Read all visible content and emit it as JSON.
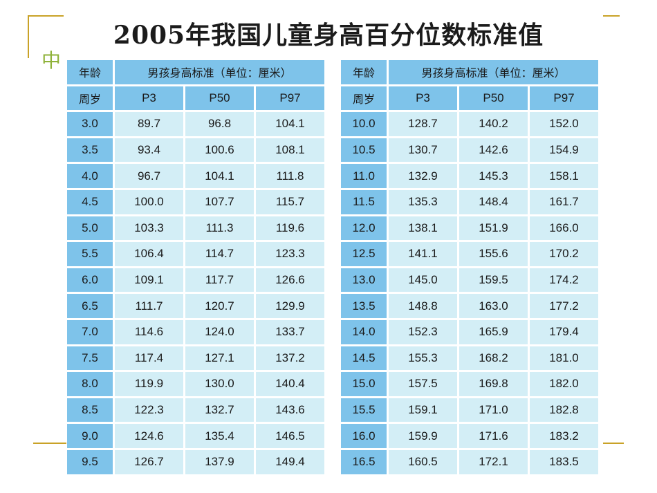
{
  "title": "2005年我国儿童身高百分位数标准值",
  "bullet_char": "中",
  "tables": [
    {
      "age_header": "年龄",
      "measure_header": "男孩身高标准（单位：厘米）",
      "unit_header": "周岁",
      "cols": [
        "P3",
        "P50",
        "P97"
      ],
      "rows": [
        {
          "age": "3.0",
          "p3": "89.7",
          "p50": "96.8",
          "p97": "104.1"
        },
        {
          "age": "3.5",
          "p3": "93.4",
          "p50": "100.6",
          "p97": "108.1"
        },
        {
          "age": "4.0",
          "p3": "96.7",
          "p50": "104.1",
          "p97": "111.8"
        },
        {
          "age": "4.5",
          "p3": "100.0",
          "p50": "107.7",
          "p97": "115.7"
        },
        {
          "age": "5.0",
          "p3": "103.3",
          "p50": "111.3",
          "p97": "119.6"
        },
        {
          "age": "5.5",
          "p3": "106.4",
          "p50": "114.7",
          "p97": "123.3"
        },
        {
          "age": "6.0",
          "p3": "109.1",
          "p50": "117.7",
          "p97": "126.6"
        },
        {
          "age": "6.5",
          "p3": "111.7",
          "p50": "120.7",
          "p97": "129.9"
        },
        {
          "age": "7.0",
          "p3": "114.6",
          "p50": "124.0",
          "p97": "133.7"
        },
        {
          "age": "7.5",
          "p3": "117.4",
          "p50": "127.1",
          "p97": "137.2"
        },
        {
          "age": "8.0",
          "p3": "119.9",
          "p50": "130.0",
          "p97": "140.4"
        },
        {
          "age": "8.5",
          "p3": "122.3",
          "p50": "132.7",
          "p97": "143.6"
        },
        {
          "age": "9.0",
          "p3": "124.6",
          "p50": "135.4",
          "p97": "146.5"
        },
        {
          "age": "9.5",
          "p3": "126.7",
          "p50": "137.9",
          "p97": "149.4"
        }
      ]
    },
    {
      "age_header": "年龄",
      "measure_header": "男孩身高标准（单位：厘米）",
      "unit_header": "周岁",
      "cols": [
        "P3",
        "P50",
        "P97"
      ],
      "rows": [
        {
          "age": "10.0",
          "p3": "128.7",
          "p50": "140.2",
          "p97": "152.0"
        },
        {
          "age": "10.5",
          "p3": "130.7",
          "p50": "142.6",
          "p97": "154.9"
        },
        {
          "age": "11.0",
          "p3": "132.9",
          "p50": "145.3",
          "p97": "158.1"
        },
        {
          "age": "11.5",
          "p3": "135.3",
          "p50": "148.4",
          "p97": "161.7"
        },
        {
          "age": "12.0",
          "p3": "138.1",
          "p50": "151.9",
          "p97": "166.0"
        },
        {
          "age": "12.5",
          "p3": "141.1",
          "p50": "155.6",
          "p97": "170.2"
        },
        {
          "age": "13.0",
          "p3": "145.0",
          "p50": "159.5",
          "p97": "174.2"
        },
        {
          "age": "13.5",
          "p3": "148.8",
          "p50": "163.0",
          "p97": "177.2"
        },
        {
          "age": "14.0",
          "p3": "152.3",
          "p50": "165.9",
          "p97": "179.4"
        },
        {
          "age": "14.5",
          "p3": "155.3",
          "p50": "168.2",
          "p97": "181.0"
        },
        {
          "age": "15.0",
          "p3": "157.5",
          "p50": "169.8",
          "p97": "182.0"
        },
        {
          "age": "15.5",
          "p3": "159.1",
          "p50": "171.0",
          "p97": "182.8"
        },
        {
          "age": "16.0",
          "p3": "159.9",
          "p50": "171.6",
          "p97": "183.2"
        },
        {
          "age": "16.5",
          "p3": "160.5",
          "p50": "172.1",
          "p97": "183.5"
        }
      ]
    }
  ]
}
